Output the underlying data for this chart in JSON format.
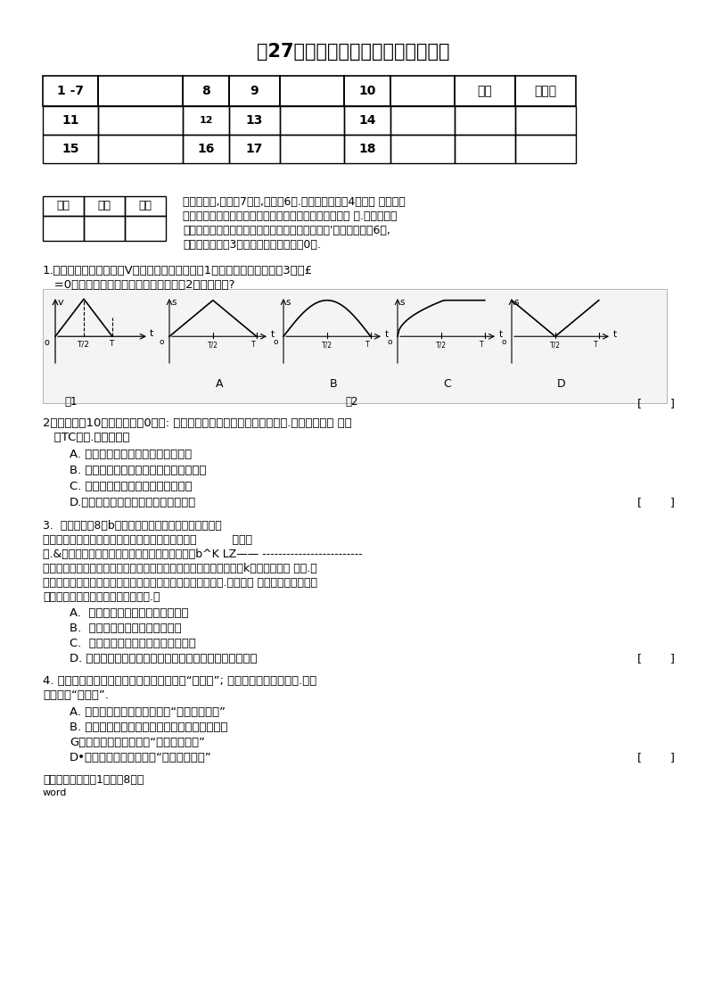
{
  "title": "第27届全国中学生物理竞赛预赛试卷",
  "bg_color": "#ffffff",
  "row1_labels": [
    "1 -7",
    "",
    "8",
    "9",
    "",
    "10",
    "",
    "总分",
    "加分人"
  ],
  "row2_labels": [
    "11",
    "",
    "12",
    "13",
    "",
    "14",
    "",
    "",
    ""
  ],
  "row3_labels": [
    "15",
    "",
    "16",
    "17",
    "",
    "18",
    "",
    "",
    ""
  ],
  "table2_headers": [
    "得分",
    "阅卷",
    "复核"
  ],
  "sec1_line1": "一．选择击,本题兲7小题,每小题6分.在每小题给出的4个选项 中，有的",
  "sec1_line2": "小题只有一项是符合题意的，有的小题有多项是符合题意 的.把符合题意",
  "sec1_line3": "的选项前面的英文字母写在每小题后面的方括号内'全部选对的得6分,",
  "sec1_line4": "选对但不全的得3分，有选错或不答的得0分.",
  "q1_line1": "1.若质点作直线运动的速V随时机变化的图线如图1所示，则该质点的位剹3（从£",
  "q1_line2": "   =0开始）随时间，变化的图线可能是图2中的哪一个?",
  "q2_line1": "2烧杯内盛有10迫的水，一兖0。（: 的冰浮在水面上，水面正好在杯口处.最后冰全部塔 解成",
  "q2_line2": "   （TC的水.在这过程中",
  "q2_a": "A. 无水溢出杯口，但最后水面下降了",
  "q2_b": "B. 有水溢出杯口，但最后水面仍在杯口处",
  "q2_c": "C. 无水溢出杯口，水面始终在杯口处",
  "q2_d": "D.有水溢出杯口，但最后水面低于杯口",
  "q3_line1": "3.  如图所示，8和b是绶热气凝内的两个活塞，他们把气",
  "q3_line2": "缸分成甲和乙两部分，两部分中都封有等量的理想气          玉甲乙",
  "q3_line3": "体.&是导热的，其热容量可不计，与气缸壁固连．b^K LZ—— -------------------------",
  "q3_line4": "是绶热的，可在气缸内无摩擦滑动，但不漏气，其右方为大气，图中k为加热用的电 炉丝.开",
  "q3_line5": "始时，系统处于平衡状态，两部分中气体的温度和压强皆相同.现接通电 源，缓慢加热一段时",
  "q3_line6": "间后停止加热，系统又达到新的平衡.则",
  "q3_a": "A.  甲、乙中气体的温度有词能不变",
  "q3_b": "B.  甲、乙中气体的压强都增加了",
  "q3_c": "C.  甲、乙中气体的内能的增加景相等",
  "q3_d": "D. 电炉丝放出的总热鱼等于甲、乙中气体增加内能的总和",
  "q4_line1": "4. 一杯水放在炉上加热烧开后，水面上方有“白色气”; 夏天一块冰放在桌面上.冰的",
  "q4_line2": "上方也有“白色气”.",
  "q4_a": "A. 前者主要是由杯中水变来的“水的气态物质”",
  "q4_b": "B. 前者主要是由杯中水变来的「水的液态物质」",
  "q4_c": "G后者主要是由冰变来的“水的气态物质”",
  "q4_d": "D•后者主要是由冰变来的“水的液态物质”",
  "footer": "物理竞赛预赛卷第1页（共8页）",
  "footer2": "word"
}
